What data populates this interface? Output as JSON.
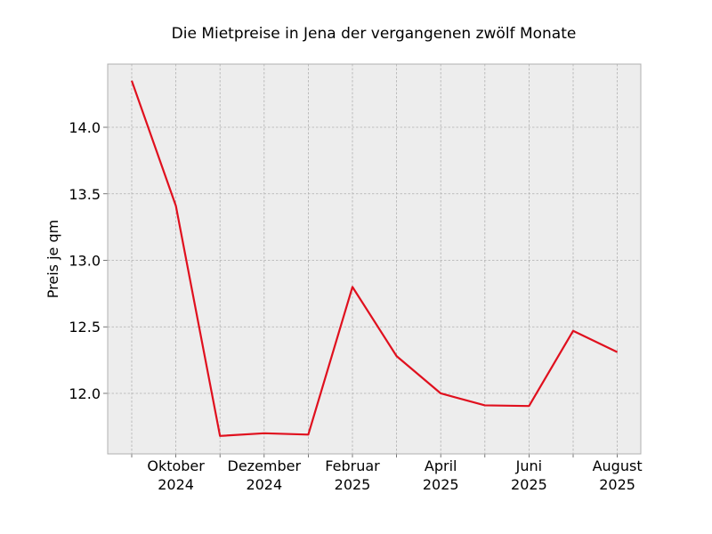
{
  "chart_data": {
    "type": "line",
    "title": "Die Mietpreise in Jena der vergangenen zwölf Monate",
    "xlabel": "",
    "ylabel": "Preis je qm",
    "x": [
      "2024-09",
      "2024-10",
      "2024-11",
      "2024-12",
      "2025-01",
      "2025-02",
      "2025-03",
      "2025-04",
      "2025-05",
      "2025-06",
      "2025-07",
      "2025-08"
    ],
    "series": [
      {
        "values": [
          14.35,
          13.41,
          11.68,
          11.7,
          11.69,
          12.8,
          12.28,
          12.0,
          11.91,
          11.905,
          12.47,
          12.31
        ],
        "color": "#e0101e"
      }
    ],
    "ylim": [
      11.545,
      14.475
    ],
    "yticks": [
      12.0,
      12.5,
      13.0,
      13.5,
      14.0
    ],
    "ytick_labels": [
      "12.0",
      "12.5",
      "13.0",
      "13.5",
      "14.0"
    ],
    "xtick_labels": [
      {
        "x": "2024-10",
        "line1": "Oktober",
        "line2": "2024"
      },
      {
        "x": "2024-12",
        "line1": "Dezember",
        "line2": "2024"
      },
      {
        "x": "2025-02",
        "line1": "Februar",
        "line2": "2025"
      },
      {
        "x": "2025-04",
        "line1": "April",
        "line2": "2025"
      },
      {
        "x": "2025-06",
        "line1": "Juni",
        "line2": "2025"
      },
      {
        "x": "2025-08",
        "line1": "August",
        "line2": "2025"
      }
    ],
    "grid": true,
    "colors": {
      "plot_background": "#ededed",
      "grid": "#b0b0b0",
      "frame": "#b0b0b0"
    }
  }
}
